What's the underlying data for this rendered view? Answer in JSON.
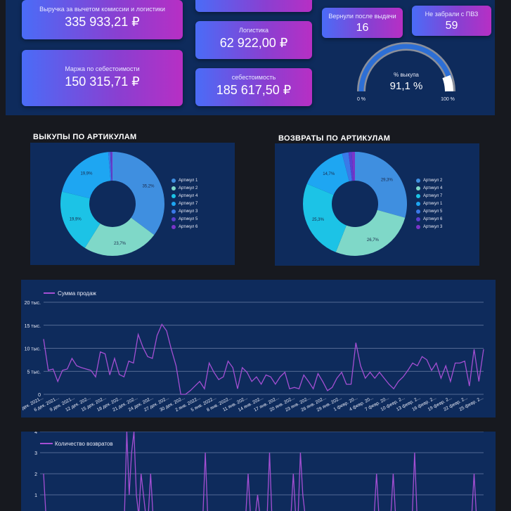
{
  "kpis": {
    "revenue_label": "Выручка за вычетом комиссии и логистики",
    "revenue_value": "335 933,21 ₽",
    "margin_label": "Маржа по себестоимости",
    "margin_value": "150 315,71 ₽",
    "logistics_label": "Логистика",
    "logistics_value": "62 922,00 ₽",
    "cost_label": "себестоимость",
    "cost_value": "185 617,50 ₽",
    "returned_label": "Вернули после выдачи",
    "returned_value": "16",
    "not_picked_label": "Не забрали с ПВЗ",
    "not_picked_value": "59"
  },
  "gauge": {
    "label": "% выкупа",
    "value_text": "91,1 %",
    "value": 0.911,
    "min_label": "0 %",
    "max_label": "100 %"
  },
  "colors": {
    "panel": "#0e2b5c",
    "line": "#a44fd3",
    "grid": "#6b7fa6"
  },
  "pie_buyouts": {
    "title": "ВЫКУПЫ ПО АРТИКУЛАМ",
    "legend": [
      "Артикул 1",
      "Артикул 2",
      "Артикул 4",
      "Артикул 7",
      "Артикул 3",
      "Артикул 5",
      "Артикул 6"
    ],
    "colors": [
      "#3f8fe0",
      "#7fd8c8",
      "#1cc3e6",
      "#1ea6f2",
      "#3a7ae8",
      "#5a3fd0",
      "#7a35c8"
    ],
    "values": [
      35.2,
      23.7,
      19.9,
      19.9,
      0.6,
      0.4,
      0.3
    ],
    "labels": [
      "35,2%",
      "23,7%",
      "19,9%",
      "19,9%",
      "",
      "",
      ""
    ]
  },
  "pie_returns": {
    "title": "ВОЗВРАТЫ ПО АРТИКУЛАМ",
    "legend": [
      "Артикул 2",
      "Артикул 4",
      "Артикул 7",
      "Артикул 1",
      "Артикул 5",
      "Артикул 6",
      "Артикул 3"
    ],
    "colors": [
      "#3f8fe0",
      "#7fd8c8",
      "#1cc3e6",
      "#1ea6f2",
      "#3a7ae8",
      "#5a3fd0",
      "#7a35c8"
    ],
    "values": [
      29.3,
      26.7,
      25.3,
      14.7,
      2.0,
      1.0,
      1.0
    ],
    "labels": [
      "29,3%",
      "26,7%",
      "25,3%",
      "14,7%",
      "",
      "",
      ""
    ]
  },
  "chart_data": [
    {
      "type": "line",
      "series_name": "Сумма продаж",
      "y_ticks": [
        "0",
        "5 тыс.",
        "10 тыс.",
        "15 тыс.",
        "20 тыс."
      ],
      "ylim": [
        0,
        20000
      ],
      "x_tick_labels": [
        "3 дек. 2021...",
        "6 дек. 2021...",
        "9 дек. 2021...",
        "12 дек. 202...",
        "15 дек. 202...",
        "18 дек. 202...",
        "21 дек. 202...",
        "24 дек. 202...",
        "27 дек. 202...",
        "30 дек. 202...",
        "2 янв. 2022...",
        "5 янв. 2022...",
        "8 янв. 2022...",
        "11 янв. 202...",
        "14 янв. 202...",
        "17 янв. 202...",
        "20 янв. 202...",
        "23 янв. 202...",
        "26 янв. 202...",
        "29 янв. 202...",
        "1 февр. 20...",
        "4 февр. 20...",
        "7 февр. 20...",
        "10 февр. 2...",
        "13 февр. 2...",
        "16 февр. 2...",
        "19 февр. 2...",
        "22 февр. 2...",
        "25 февр. 2..."
      ],
      "values": [
        12000,
        5200,
        5500,
        2800,
        5200,
        5500,
        7800,
        6200,
        5800,
        5500,
        5200,
        3800,
        9200,
        8800,
        4200,
        7800,
        4300,
        3800,
        7200,
        6800,
        13000,
        10200,
        8200,
        7800,
        12800,
        15200,
        13800,
        9800,
        6200,
        0,
        0,
        800,
        1800,
        2800,
        1200,
        6800,
        4800,
        3200,
        3800,
        7200,
        5800,
        1200,
        5800,
        4800,
        2800,
        3800,
        2200,
        4200,
        3800,
        2200,
        3800,
        4800,
        1200,
        1500,
        1200,
        4200,
        2800,
        1200,
        4500,
        2800,
        800,
        1500,
        3500,
        4800,
        2200,
        2200,
        11200,
        6200,
        3500,
        4800,
        3500,
        4800,
        3500,
        2200,
        1200,
        2800,
        3800,
        5200,
        6800,
        6200,
        8200,
        7500,
        5200,
        6800,
        3500,
        6200,
        2800,
        6800,
        6800,
        7200,
        1800,
        9800,
        2800,
        9800
      ]
    },
    {
      "type": "line",
      "series_name": "Количество возвратов",
      "y_ticks": [
        "1",
        "2",
        "3",
        "4"
      ],
      "values": [
        2,
        0,
        0,
        0,
        0,
        0,
        0,
        0,
        0,
        0,
        0,
        0,
        0,
        0,
        0,
        0,
        0,
        0,
        0,
        0,
        0,
        0,
        0,
        0,
        0,
        0,
        0,
        0,
        0,
        0,
        0,
        0,
        0,
        0,
        0,
        4,
        1,
        3,
        4,
        1,
        0,
        2,
        1,
        0,
        0,
        2,
        0,
        0,
        0,
        0,
        0,
        0,
        0,
        0,
        0,
        0,
        0,
        0,
        0,
        0,
        0,
        0,
        0,
        0,
        0,
        0,
        0,
        0,
        3,
        0,
        0,
        0,
        0,
        0,
        0,
        0,
        0,
        0,
        0,
        0,
        0,
        0,
        0,
        0,
        0,
        0,
        2,
        0,
        0,
        0,
        1,
        0,
        0,
        0,
        0,
        3,
        0,
        0,
        0,
        0,
        0,
        0,
        0,
        0,
        0,
        2,
        0,
        0,
        3,
        1,
        0,
        0,
        0,
        0,
        0,
        0,
        0,
        0,
        0,
        0,
        0,
        0,
        0,
        0,
        0,
        0,
        0,
        0,
        0,
        0,
        0,
        0,
        0,
        0,
        0,
        0,
        0,
        0,
        0,
        0,
        2,
        0,
        0,
        0,
        0,
        0,
        0,
        2,
        0,
        0,
        0,
        0,
        0,
        0,
        0,
        0,
        3,
        0,
        0,
        0,
        0,
        0,
        0,
        0,
        0,
        0,
        0,
        0,
        0,
        0,
        0,
        0,
        0,
        0,
        0,
        0,
        0,
        0,
        0,
        0,
        0,
        2,
        0,
        0,
        0,
        0
      ]
    }
  ]
}
